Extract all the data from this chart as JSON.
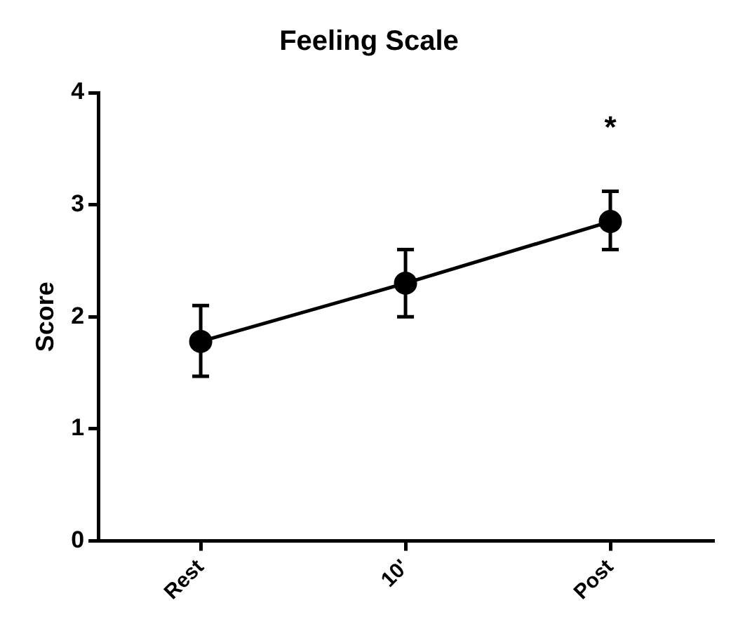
{
  "chart_data": {
    "type": "line",
    "title": "Feeling Scale",
    "ylabel": "Score",
    "categories": [
      "Rest",
      "10'",
      "Post"
    ],
    "series": [
      {
        "color": "#000000",
        "values": [
          1.78,
          2.3,
          2.85
        ],
        "errors": [
          [
            1.47,
            2.1
          ],
          [
            2.0,
            2.6
          ],
          [
            2.6,
            3.12
          ]
        ]
      }
    ],
    "ylim": [
      0,
      4
    ],
    "yticks": [
      0,
      1,
      2,
      3,
      4
    ],
    "grid": false,
    "legend": false,
    "marker": "circle",
    "line_style": "solid",
    "annotations": [
      "*"
    ]
  }
}
